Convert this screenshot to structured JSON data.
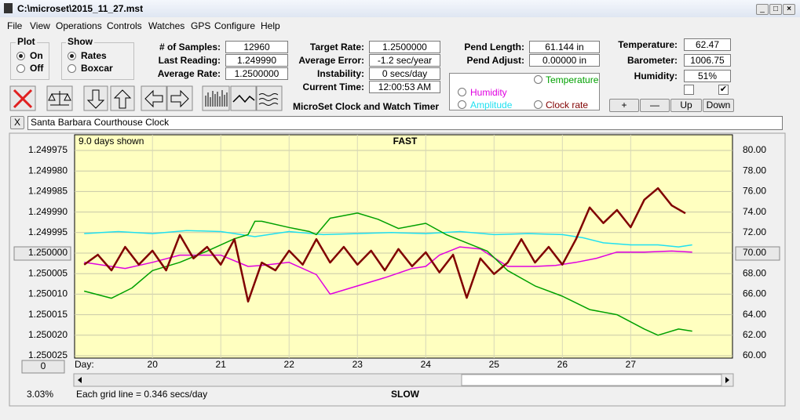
{
  "window": {
    "title": "C:\\microset\\2015_11_27.mst"
  },
  "menu": [
    "File",
    "View",
    "Operations",
    "Controls",
    "Watches",
    "GPS",
    "Configure",
    "Help"
  ],
  "plot_group": {
    "title": "Plot",
    "options": [
      "On",
      "Off"
    ]
  },
  "show_group": {
    "title": "Show",
    "options": [
      "Rates",
      "Boxcar"
    ]
  },
  "readouts": [
    [
      {
        "label": "# of Samples:",
        "value": "12960"
      },
      {
        "label": "Last Reading:",
        "value": "1.249990"
      },
      {
        "label": "Average Rate:",
        "value": "1.2500000"
      }
    ],
    [
      {
        "label": "Target Rate:",
        "value": "1.2500000"
      },
      {
        "label": "Average Error:",
        "value": "-1.2 sec/year"
      },
      {
        "label": "Instability:",
        "value": "0 secs/day"
      },
      {
        "label": "Current Time:",
        "value": "12:00:53 AM"
      }
    ],
    [
      {
        "label": "Pend Length:",
        "value": "61.144 in"
      },
      {
        "label": "Pend Adjust:",
        "value": "0.00000 in"
      }
    ],
    [
      {
        "label": "Temperature:",
        "value": "62.47"
      },
      {
        "label": "Barometer:",
        "value": "1006.75"
      },
      {
        "label": "Humidity:",
        "value": "51%"
      }
    ]
  ],
  "app_label": "MicroSet Clock and Watch Timer",
  "buttons": [
    "+",
    "—",
    "Up",
    "Down"
  ],
  "close_label": "X",
  "clock_name": "Santa Barbara Courthouse Clock",
  "chart_data": {
    "type": "line",
    "title": "FAST",
    "bottom_title": "SLOW",
    "days_shown": "9.0 days shown",
    "x_label": "Day:",
    "grid_note": "Each grid line = 0.346 secs/day",
    "percent": "3.03%",
    "zero_button": "0",
    "xlim": [
      18.86,
      28.49
    ],
    "xticks": [
      20,
      21,
      22,
      23,
      24,
      25,
      26,
      27
    ],
    "ylim": [
      1.249975,
      1.250025
    ],
    "y_inverted": true,
    "yticks": [
      {
        "value": 1.249975,
        "label": "1.249975"
      },
      {
        "value": 1.24998,
        "label": "1.249980"
      },
      {
        "value": 1.249985,
        "label": "1.249985"
      },
      {
        "value": 1.24999,
        "label": "1.249990"
      },
      {
        "value": 1.249995,
        "label": "1.249995"
      },
      {
        "value": 1.25,
        "label": "1.250000"
      },
      {
        "value": 1.250005,
        "label": "1.250005"
      },
      {
        "value": 1.25001,
        "label": "1.250010"
      },
      {
        "value": 1.250015,
        "label": "1.250015"
      },
      {
        "value": 1.25002,
        "label": "1.250020"
      },
      {
        "value": 1.250025,
        "label": "1.250025"
      }
    ],
    "y2lim": [
      60,
      80
    ],
    "y2ticks": [
      {
        "value": 60,
        "label": "60.00"
      },
      {
        "value": 62,
        "label": "62.00"
      },
      {
        "value": 64,
        "label": "64.00"
      },
      {
        "value": 66,
        "label": "66.00"
      },
      {
        "value": 68,
        "label": "68.00"
      },
      {
        "value": 70,
        "label": "70.00"
      },
      {
        "value": 72,
        "label": "72.00"
      },
      {
        "value": 74,
        "label": "74.00"
      },
      {
        "value": 76,
        "label": "76.00"
      },
      {
        "value": 78,
        "label": "78.00"
      },
      {
        "value": 80,
        "label": "80.00"
      }
    ],
    "grid": true,
    "series": [
      {
        "name": "Clock rate",
        "color": "#800000",
        "x": [
          19.0,
          19.2,
          19.4,
          19.6,
          19.8,
          20.0,
          20.2,
          20.4,
          20.6,
          20.8,
          21.0,
          21.2,
          21.4,
          21.6,
          21.8,
          22.0,
          22.2,
          22.4,
          22.6,
          22.8,
          23.0,
          23.2,
          23.4,
          23.6,
          23.8,
          24.0,
          24.2,
          24.4,
          24.6,
          24.8,
          25.0,
          25.2,
          25.4,
          25.6,
          25.8,
          26.0,
          26.2,
          26.4,
          26.6,
          26.8,
          27.0,
          27.2,
          27.4,
          27.6,
          27.8
        ],
        "values": [
          1.2500028,
          1.2500004,
          1.2500042,
          1.2499985,
          1.2500028,
          1.2499994,
          1.2500042,
          1.2499956,
          1.2500013,
          1.2499985,
          1.2500028,
          1.2499966,
          1.2500118,
          1.2500023,
          1.2500042,
          1.2499994,
          1.2500028,
          1.2499966,
          1.2500023,
          1.2499985,
          1.2500028,
          1.2499994,
          1.2500042,
          1.249999,
          1.2500032,
          1.2499998,
          1.2500047,
          1.2500004,
          1.2500109,
          1.2500013,
          1.2500051,
          1.2500023,
          1.2499966,
          1.2500023,
          1.2499985,
          1.2500028,
          1.2499966,
          1.2499889,
          1.2499927,
          1.2499895,
          1.2499937,
          1.249987,
          1.2499842,
          1.2499884,
          1.2499903
        ]
      },
      {
        "name": "Temperature",
        "color": "#00a000",
        "axis": "y2",
        "x": [
          19.0,
          19.4,
          19.7,
          20.0,
          20.4,
          20.8,
          21.2,
          21.4,
          21.5,
          21.6,
          22.0,
          22.3,
          22.4,
          22.6,
          23.0,
          23.3,
          23.6,
          24.0,
          24.3,
          24.6,
          24.9,
          25.2,
          25.6,
          26.0,
          26.4,
          26.8,
          27.2,
          27.4,
          27.7,
          27.9
        ],
        "values": [
          66.3,
          65.6,
          66.6,
          68.3,
          69.1,
          70.2,
          71.4,
          71.8,
          73.1,
          73.1,
          72.5,
          72.1,
          71.8,
          73.4,
          73.9,
          73.3,
          72.4,
          72.9,
          71.8,
          71.0,
          70.2,
          68.3,
          66.8,
          65.8,
          64.5,
          64.0,
          62.6,
          62.0,
          62.6,
          62.4
        ]
      },
      {
        "name": "Humidity",
        "color": "#e000e0",
        "axis": "y2",
        "x": [
          19.0,
          19.6,
          20.0,
          20.4,
          21.0,
          21.4,
          21.6,
          22.0,
          22.4,
          22.6,
          23.0,
          23.4,
          23.8,
          24.0,
          24.2,
          24.5,
          24.8,
          25.2,
          25.6,
          25.9,
          26.2,
          26.5,
          26.8,
          27.2,
          27.6,
          27.9
        ],
        "values": [
          69.1,
          68.5,
          69.1,
          69.8,
          69.8,
          68.7,
          68.8,
          69.1,
          67.9,
          66.0,
          66.8,
          67.6,
          68.5,
          68.7,
          69.8,
          70.6,
          70.4,
          68.7,
          68.7,
          68.8,
          69.1,
          69.5,
          70.1,
          70.1,
          70.2,
          70.1
        ]
      },
      {
        "name": "Amplitude",
        "color": "#20e0f0",
        "axis": "y2",
        "x": [
          19.0,
          19.5,
          20.0,
          20.5,
          21.0,
          21.5,
          22.0,
          22.5,
          23.0,
          23.5,
          24.0,
          24.5,
          25.0,
          25.5,
          26.0,
          26.3,
          26.6,
          27.0,
          27.4,
          27.7,
          27.9
        ],
        "values": [
          71.9,
          72.1,
          71.9,
          72.2,
          72.1,
          71.6,
          72.1,
          71.8,
          71.9,
          72.0,
          71.9,
          72.1,
          71.8,
          71.9,
          71.8,
          71.5,
          71.0,
          70.8,
          70.8,
          70.6,
          70.8
        ]
      }
    ]
  }
}
